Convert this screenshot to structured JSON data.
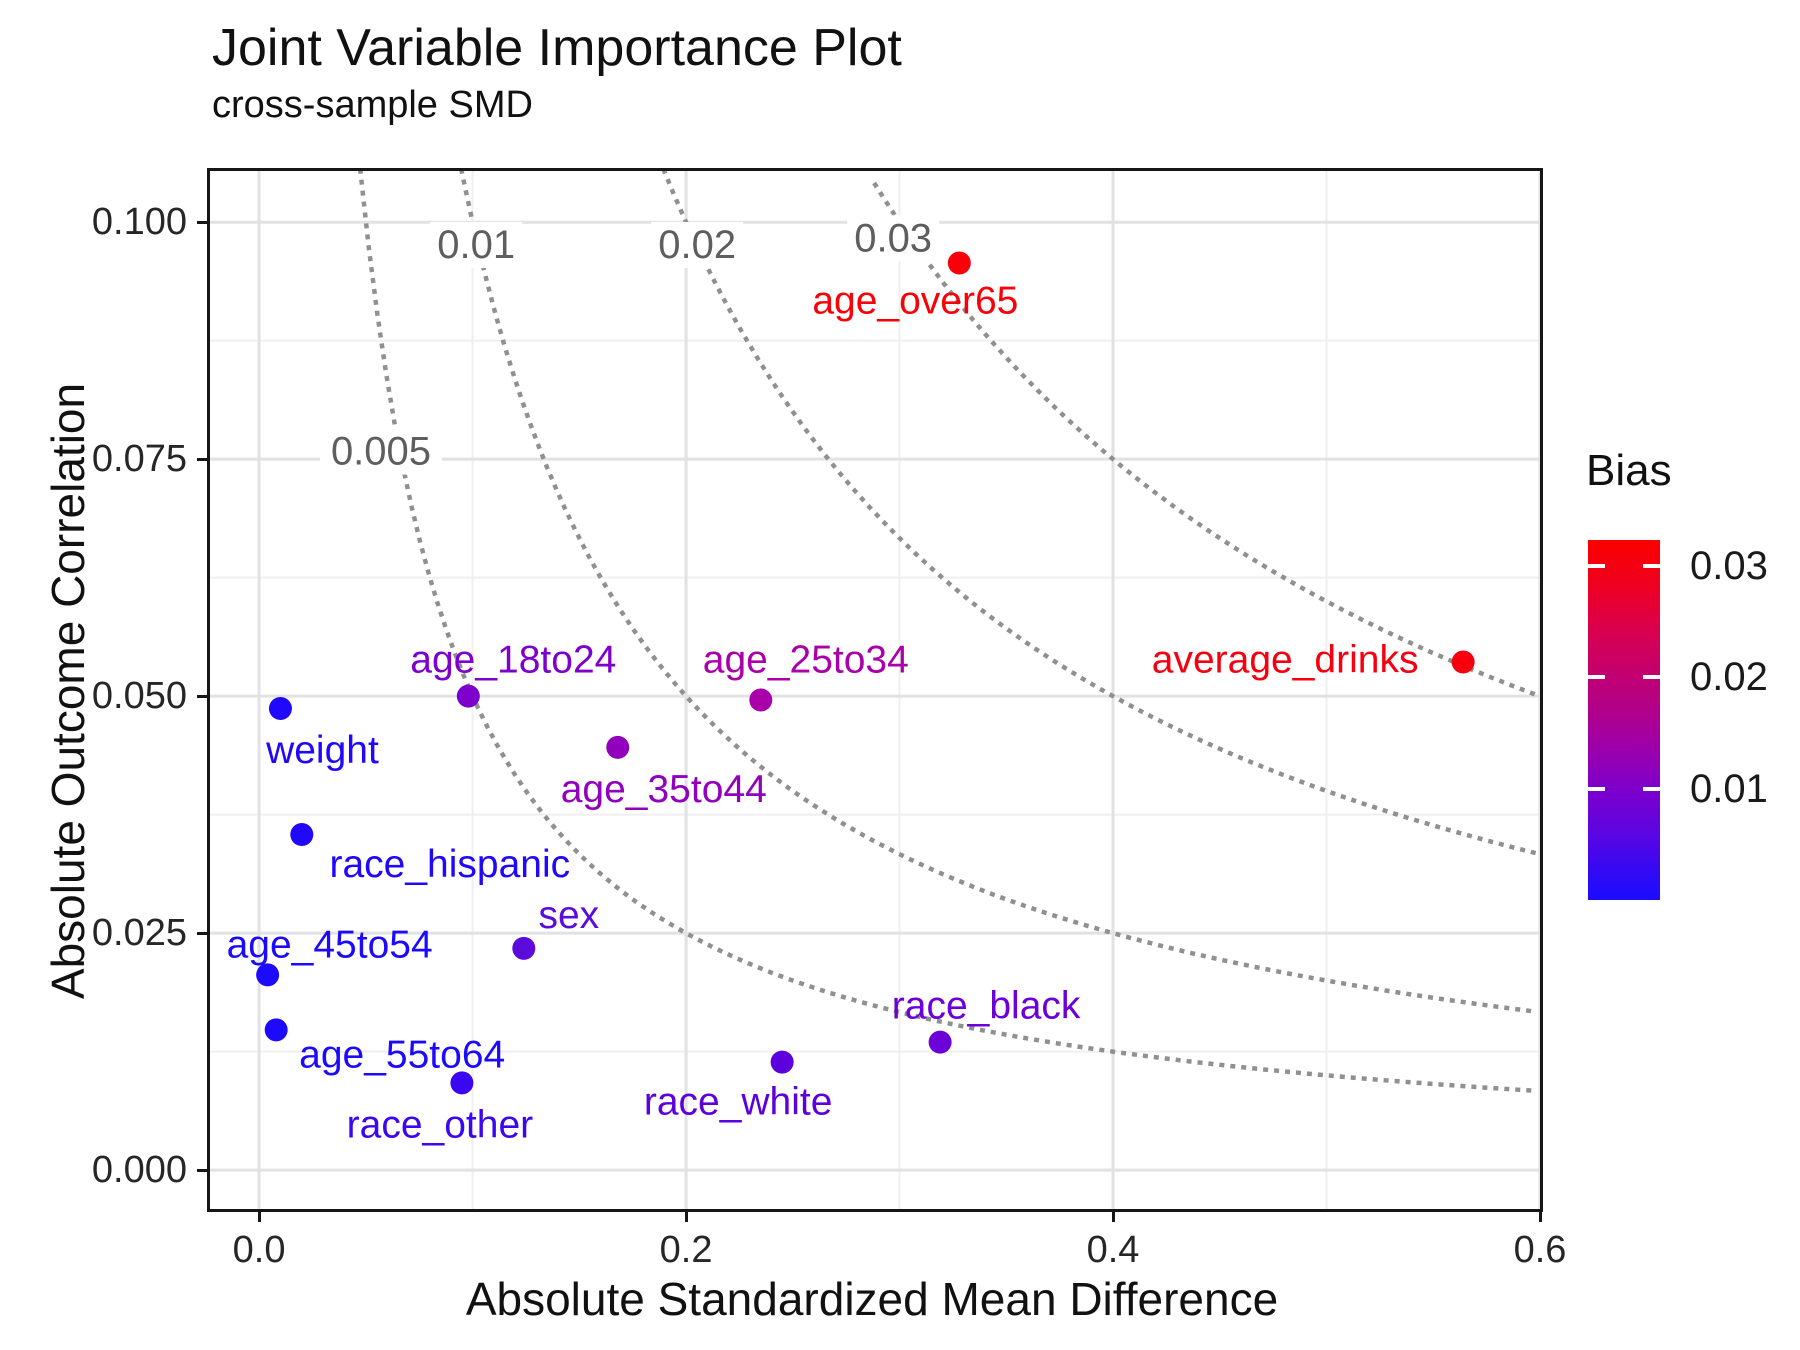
{
  "title": "Joint Variable Importance Plot",
  "subtitle": "cross-sample SMD",
  "axes": {
    "x_label": "Absolute Standardized Mean Difference",
    "y_label": "Absolute Outcome Correlation"
  },
  "legend": {
    "title": "Bias",
    "tick_labels": [
      "0.03",
      "0.02",
      "0.01"
    ]
  },
  "chart_data": {
    "type": "scatter",
    "title": "Joint Variable Importance Plot",
    "subtitle": "cross-sample SMD",
    "xlabel": "Absolute Standardized Mean Difference",
    "ylabel": "Absolute Outcome Correlation",
    "grid": true,
    "x_range": [
      -0.023,
      0.6
    ],
    "y_range": [
      -0.0041,
      0.1054
    ],
    "x_major_ticks": [
      0.0,
      0.2,
      0.4,
      0.6
    ],
    "x_major_tick_labels": [
      "0.0",
      "0.2",
      "0.4",
      "0.6"
    ],
    "x_minor_ticks": [
      0.1,
      0.3,
      0.5
    ],
    "y_major_ticks": [
      0.0,
      0.025,
      0.05,
      0.075,
      0.1
    ],
    "y_major_tick_labels": [
      "0.000",
      "0.025",
      "0.050",
      "0.075",
      "0.100"
    ],
    "y_minor_ticks": [
      0.0125,
      0.0375,
      0.0625,
      0.0875
    ],
    "points": [
      {
        "label": "age_over65",
        "smd": 0.328,
        "corr": 0.0957,
        "bias": 0.0314,
        "color": "#fa0008",
        "label_offset": [
          -44,
          38
        ]
      },
      {
        "label": "average_drinks",
        "smd": 0.564,
        "corr": 0.0536,
        "bias": 0.0302,
        "color": "#f6000f",
        "label_offset": [
          -178,
          -2
        ]
      },
      {
        "label": "age_18to24",
        "smd": 0.098,
        "corr": 0.05,
        "bias": 0.0049,
        "color": "#7d00cd",
        "label_offset": [
          45,
          -36
        ]
      },
      {
        "label": "age_25to34",
        "smd": 0.235,
        "corr": 0.0496,
        "bias": 0.0117,
        "color": "#aa00aa",
        "label_offset": [
          45,
          -40
        ]
      },
      {
        "label": "age_35to44",
        "smd": 0.168,
        "corr": 0.0446,
        "bias": 0.0075,
        "color": "#9000bd",
        "label_offset": [
          46,
          42
        ]
      },
      {
        "label": "weight",
        "smd": 0.01,
        "corr": 0.0487,
        "bias": 0.0005,
        "color": "#1f08fb",
        "label_offset": [
          42,
          42
        ]
      },
      {
        "label": "race_hispanic",
        "smd": 0.02,
        "corr": 0.0354,
        "bias": 0.0007,
        "color": "#1f08fb",
        "label_offset": [
          148,
          30
        ]
      },
      {
        "label": "sex",
        "smd": 0.124,
        "corr": 0.0234,
        "bias": 0.0029,
        "color": "#5b0bdb",
        "label_offset": [
          45,
          -33
        ]
      },
      {
        "label": "age_45to54",
        "smd": 0.004,
        "corr": 0.0206,
        "bias": 0.0001,
        "color": "#1c0afd",
        "label_offset": [
          62,
          -30
        ]
      },
      {
        "label": "age_55to64",
        "smd": 0.008,
        "corr": 0.0148,
        "bias": 0.0001,
        "color": "#1c0afd",
        "label_offset": [
          126,
          25
        ]
      },
      {
        "label": "race_other",
        "smd": 0.095,
        "corr": 0.0092,
        "bias": 0.0009,
        "color": "#3b06f1",
        "label_offset": [
          -22,
          42
        ]
      },
      {
        "label": "race_white",
        "smd": 0.245,
        "corr": 0.0114,
        "bias": 0.0028,
        "color": "#5c00dd",
        "label_offset": [
          -44,
          40
        ]
      },
      {
        "label": "race_black",
        "smd": 0.319,
        "corr": 0.0135,
        "bias": 0.0043,
        "color": "#6b00d9",
        "label_offset": [
          46,
          -36
        ]
      }
    ],
    "contours": {
      "values": [
        0.005,
        0.01,
        0.02,
        0.03
      ],
      "color": "#909090",
      "labels": [
        {
          "text": "0.005",
          "smd": 0.0571,
          "corr": 0.0758
        },
        {
          "text": "0.01",
          "smd": 0.1017,
          "corr": 0.0976
        },
        {
          "text": "0.02",
          "smd": 0.2052,
          "corr": 0.0976
        },
        {
          "text": "0.03",
          "smd": 0.297,
          "corr": 0.0983
        }
      ]
    },
    "legend_scale": {
      "title": "Bias",
      "min": 0.0,
      "max": 0.0323,
      "ticks": [
        0.03,
        0.02,
        0.01
      ],
      "tick_labels": [
        "0.03",
        "0.02",
        "0.01"
      ],
      "low_color": "#1b0dff",
      "high_color": "#fb0000"
    }
  }
}
